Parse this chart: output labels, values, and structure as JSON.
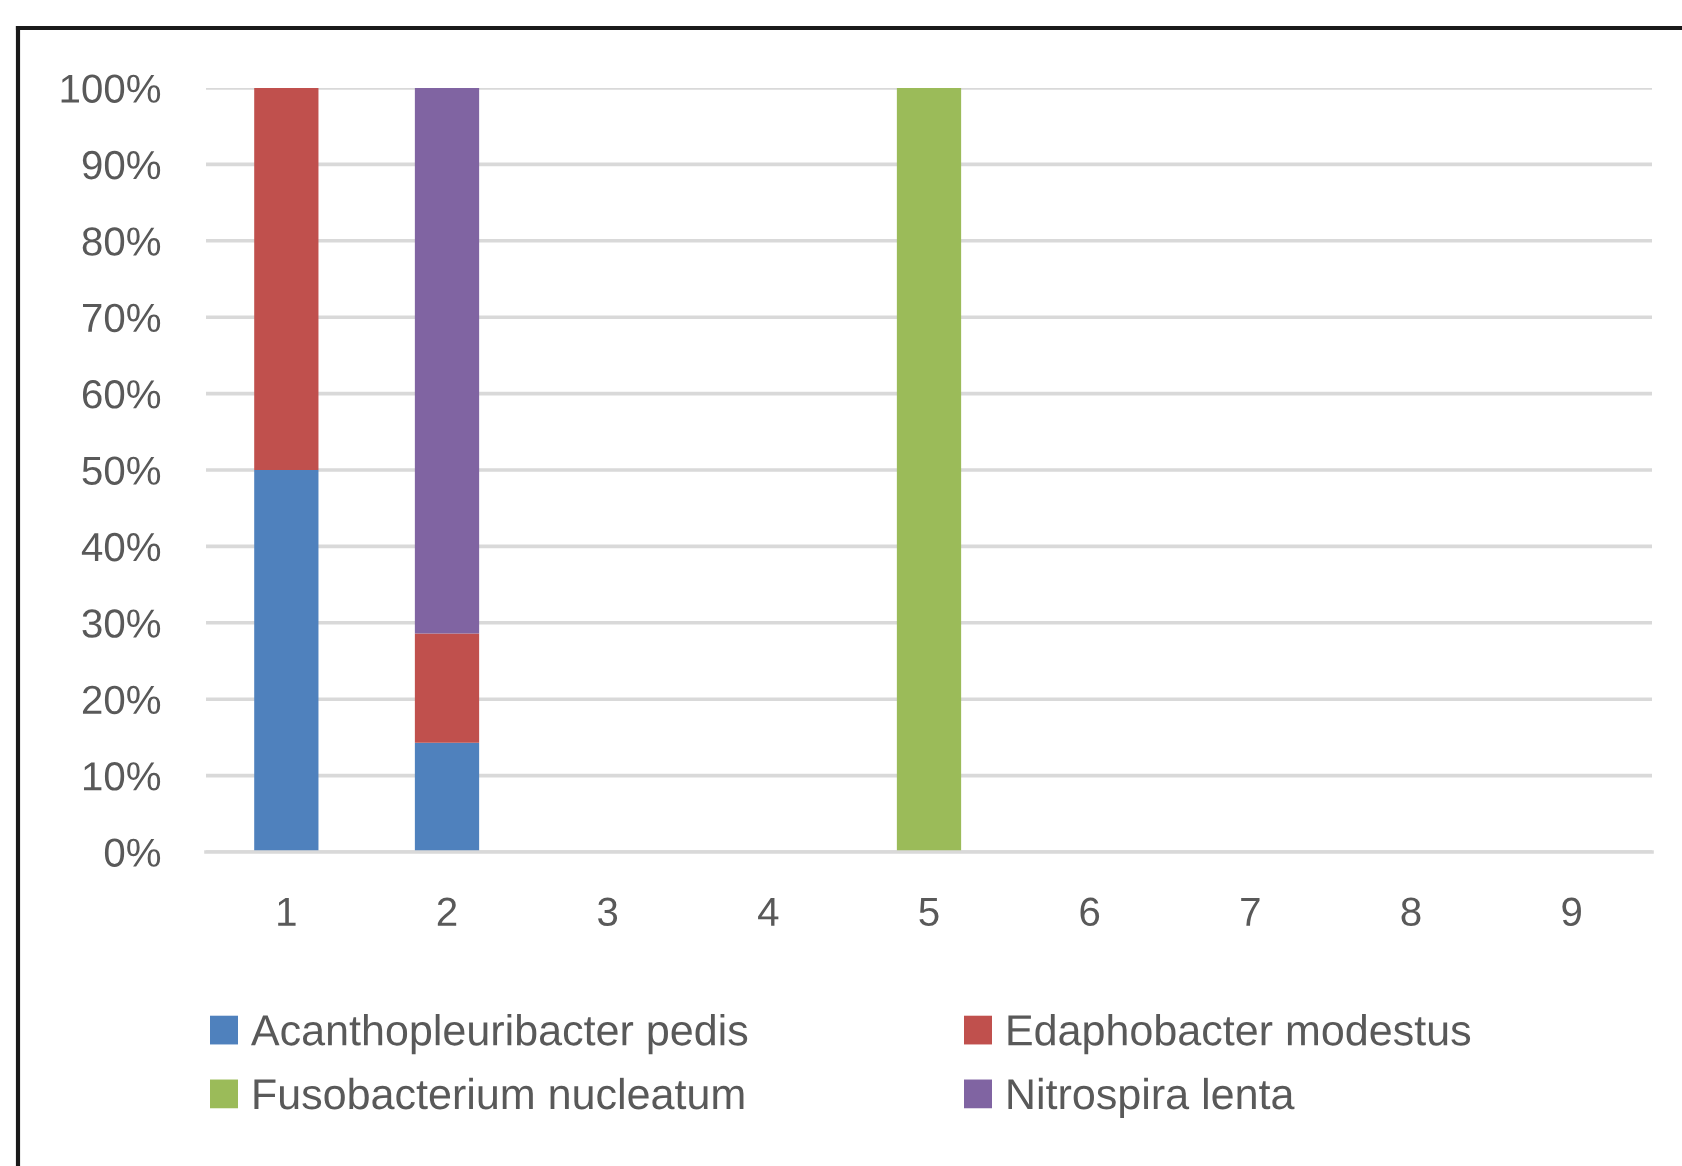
{
  "chart_data": {
    "type": "bar",
    "stacked": true,
    "categories": [
      "1",
      "2",
      "3",
      "4",
      "5",
      "6",
      "7",
      "8",
      "9"
    ],
    "series": [
      {
        "name": "Acanthopleuribacter pedis",
        "color": "#4f81bd",
        "values": [
          50,
          14.3,
          null,
          null,
          null,
          null,
          null,
          null,
          null
        ]
      },
      {
        "name": "Edaphobacter modestus",
        "color": "#c0504d",
        "values": [
          50,
          14.3,
          null,
          null,
          null,
          null,
          null,
          null,
          null
        ]
      },
      {
        "name": "Fusobacterium nucleatum",
        "color": "#9bbb59",
        "values": [
          null,
          null,
          null,
          null,
          100,
          null,
          null,
          null,
          null
        ]
      },
      {
        "name": "Nitrospira lenta",
        "color": "#8064a2",
        "values": [
          null,
          71.4,
          null,
          null,
          null,
          null,
          null,
          null,
          null
        ]
      }
    ],
    "ylim": [
      0,
      100
    ],
    "yticks": [
      {
        "value": 0,
        "label": "0%"
      },
      {
        "value": 10,
        "label": "10%"
      },
      {
        "value": 20,
        "label": "20%"
      },
      {
        "value": 30,
        "label": "30%"
      },
      {
        "value": 40,
        "label": "40%"
      },
      {
        "value": 50,
        "label": "50%"
      },
      {
        "value": 60,
        "label": "60%"
      },
      {
        "value": 70,
        "label": "70%"
      },
      {
        "value": 80,
        "label": "80%"
      },
      {
        "value": 90,
        "label": "90%"
      },
      {
        "value": 100,
        "label": "100%"
      }
    ],
    "grid": "y",
    "legend": "bottom"
  }
}
